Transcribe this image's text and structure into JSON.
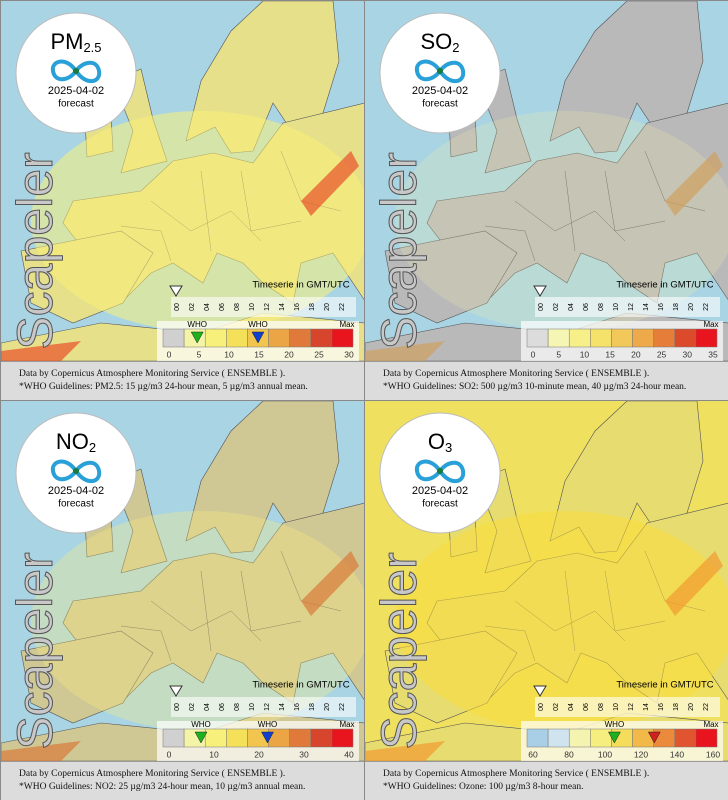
{
  "panels": [
    {
      "pollutant": "PM",
      "subscript": "2.5",
      "date": "2025-04-02",
      "forecast_label": "forecast",
      "watermark": "Scapeler",
      "timeserie_label": "Timeserie in GMT/UTC",
      "hours": [
        "00",
        "02",
        "04",
        "06",
        "08",
        "10",
        "12",
        "14",
        "16",
        "18",
        "20",
        "22"
      ],
      "scale_labels": [
        "0",
        "5",
        "10",
        "15",
        "20",
        "25",
        "30"
      ],
      "who_labels": [
        "WHO",
        "WHO"
      ],
      "max_label": "Max",
      "credit": "Data by Copernicus Atmosphere Monitoring Service ( ENSEMBLE ).",
      "guideline": "*WHO Guidelines: PM2.5: 15 µg/m3 24-hour mean, 5 µg/m3 annual mean."
    },
    {
      "pollutant": "SO",
      "subscript": "2",
      "date": "2025-04-02",
      "forecast_label": "forecast",
      "watermark": "Scapeler",
      "timeserie_label": "Timeserie in GMT/UTC",
      "hours": [
        "00",
        "02",
        "04",
        "06",
        "08",
        "10",
        "12",
        "14",
        "16",
        "18",
        "20",
        "22"
      ],
      "scale_labels": [
        "0",
        "5",
        "10",
        "15",
        "20",
        "25",
        "30",
        "35"
      ],
      "who_labels": [],
      "max_label": "Max",
      "credit": "Data by Copernicus Atmosphere Monitoring Service ( ENSEMBLE ).",
      "guideline": "*WHO Guidelines: SO2: 500 µg/m3 10-minute mean, 40 µg/m3 24-hour mean."
    },
    {
      "pollutant": "NO",
      "subscript": "2",
      "date": "2025-04-02",
      "forecast_label": "forecast",
      "watermark": "Scapeler",
      "timeserie_label": "Timeserie in GMT/UTC",
      "hours": [
        "00",
        "02",
        "04",
        "06",
        "08",
        "10",
        "12",
        "14",
        "16",
        "18",
        "20",
        "22"
      ],
      "scale_labels": [
        "0",
        "10",
        "20",
        "30",
        "40"
      ],
      "who_labels": [
        "WHO",
        "WHO"
      ],
      "max_label": "Max",
      "credit": "Data by Copernicus Atmosphere Monitoring Service ( ENSEMBLE ).",
      "guideline": "*WHO Guidelines: NO2: 25 µg/m3 24-hour mean, 10 µg/m3 annual mean."
    },
    {
      "pollutant": "O",
      "subscript": "3",
      "date": "2025-04-02",
      "forecast_label": "forecast",
      "watermark": "Scapeler",
      "timeserie_label": "Timeserie in GMT/UTC",
      "hours": [
        "00",
        "02",
        "04",
        "06",
        "08",
        "10",
        "12",
        "14",
        "16",
        "18",
        "20",
        "22"
      ],
      "scale_labels": [
        "60",
        "80",
        "100",
        "120",
        "140",
        "160"
      ],
      "who_labels": [
        "WHO"
      ],
      "max_label": "Max",
      "credit": "Data by Copernicus Atmosphere Monitoring Service ( ENSEMBLE ).",
      "guideline": "*WHO Guidelines: Ozone: 100 µg/m3 8-hour mean."
    }
  ]
}
